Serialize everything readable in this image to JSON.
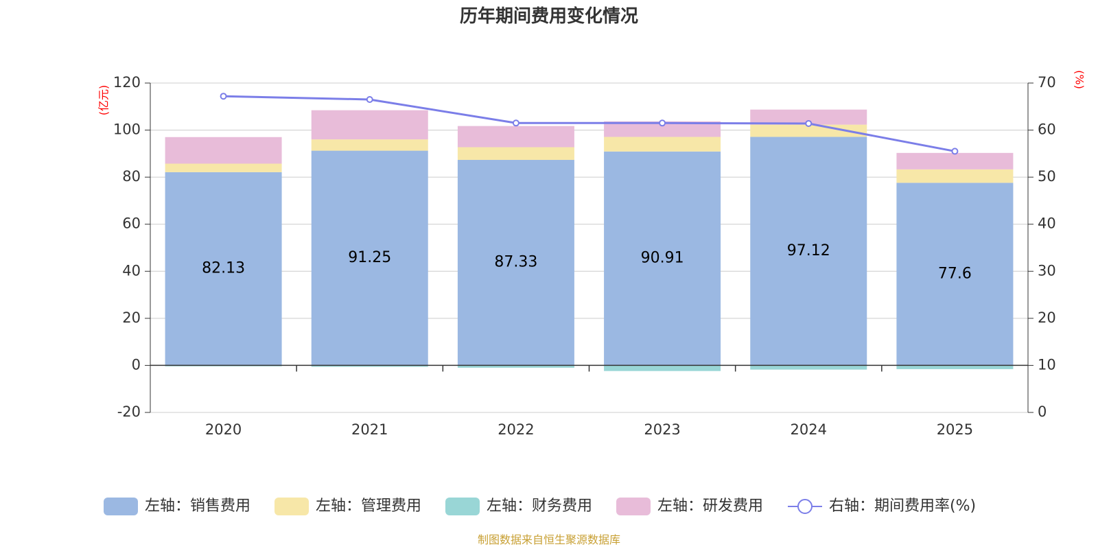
{
  "chart_data": {
    "type": "bar",
    "title": "历年期间费用变化情况",
    "categories": [
      "2020",
      "2021",
      "2022",
      "2023",
      "2024",
      "2025"
    ],
    "left_axis": {
      "unit": "(亿元)",
      "ylim": [
        -20,
        120
      ],
      "ticks": [
        120,
        100,
        80,
        60,
        40,
        20,
        0,
        -20
      ]
    },
    "right_axis": {
      "unit": "(%)",
      "ylim": [
        0,
        70
      ],
      "ticks": [
        70,
        60,
        50,
        40,
        30,
        20,
        10,
        0
      ]
    },
    "series": [
      {
        "name": "左轴：销售费用",
        "axis": "left",
        "color": "#9bb8e2",
        "values": [
          82.13,
          91.25,
          87.33,
          90.91,
          97.12,
          77.6
        ],
        "show_labels": true
      },
      {
        "name": "左轴：管理费用",
        "axis": "left",
        "color": "#f7e7a8",
        "values": [
          3.6,
          4.8,
          5.4,
          6.2,
          5.2,
          5.7
        ]
      },
      {
        "name": "左轴：财务费用",
        "axis": "left",
        "color": "#99d6d6",
        "values": [
          -0.4,
          -0.6,
          -1.0,
          -2.4,
          -1.8,
          -1.6
        ]
      },
      {
        "name": "左轴：研发费用",
        "axis": "left",
        "color": "#e8bcd9",
        "values": [
          11.3,
          12.4,
          9.0,
          6.6,
          6.4,
          7.0
        ]
      },
      {
        "name": "右轴：期间费用率(%)",
        "axis": "right",
        "type": "line",
        "color": "#7b7ee8",
        "values": [
          67.2,
          66.5,
          61.5,
          61.5,
          61.4,
          55.5
        ]
      }
    ],
    "grid": true,
    "legend_position": "bottom"
  },
  "source_note": "制图数据来自恒生聚源数据库"
}
